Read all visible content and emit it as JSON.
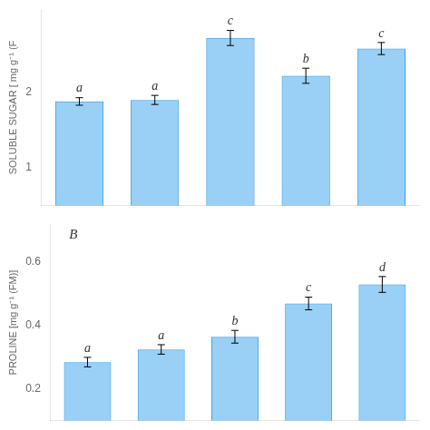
{
  "chart_data": [
    {
      "type": "bar",
      "categories": [
        null,
        null,
        null,
        null,
        null
      ],
      "values": [
        1.88,
        1.9,
        2.72,
        2.22,
        2.58
      ],
      "errors": [
        0.05,
        0.06,
        0.1,
        0.1,
        0.08
      ],
      "bar_labels": [
        "a",
        "a",
        "c",
        "b",
        "c"
      ],
      "ylabel": "SOLUBLE SUGAR [ mg g⁻¹ (F",
      "ylim": [
        0.5,
        3.1
      ],
      "yticks": [
        1,
        2
      ],
      "grid": false,
      "tick_labels": "y"
    },
    {
      "type": "bar",
      "categories": [
        null,
        null,
        null,
        null,
        null
      ],
      "values": [
        0.285,
        0.325,
        0.365,
        0.47,
        0.53
      ],
      "errors": [
        0.015,
        0.015,
        0.02,
        0.02,
        0.025
      ],
      "bar_labels": [
        "a",
        "a",
        "b",
        "c",
        "d"
      ],
      "ylabel": "PROLINE [mg g⁻¹ (FM)]",
      "ylim": [
        0.1,
        0.72
      ],
      "yticks": [
        0.2,
        0.4,
        0.6
      ],
      "annotations": [
        "B"
      ],
      "grid": false,
      "tick_labels": "y"
    }
  ]
}
